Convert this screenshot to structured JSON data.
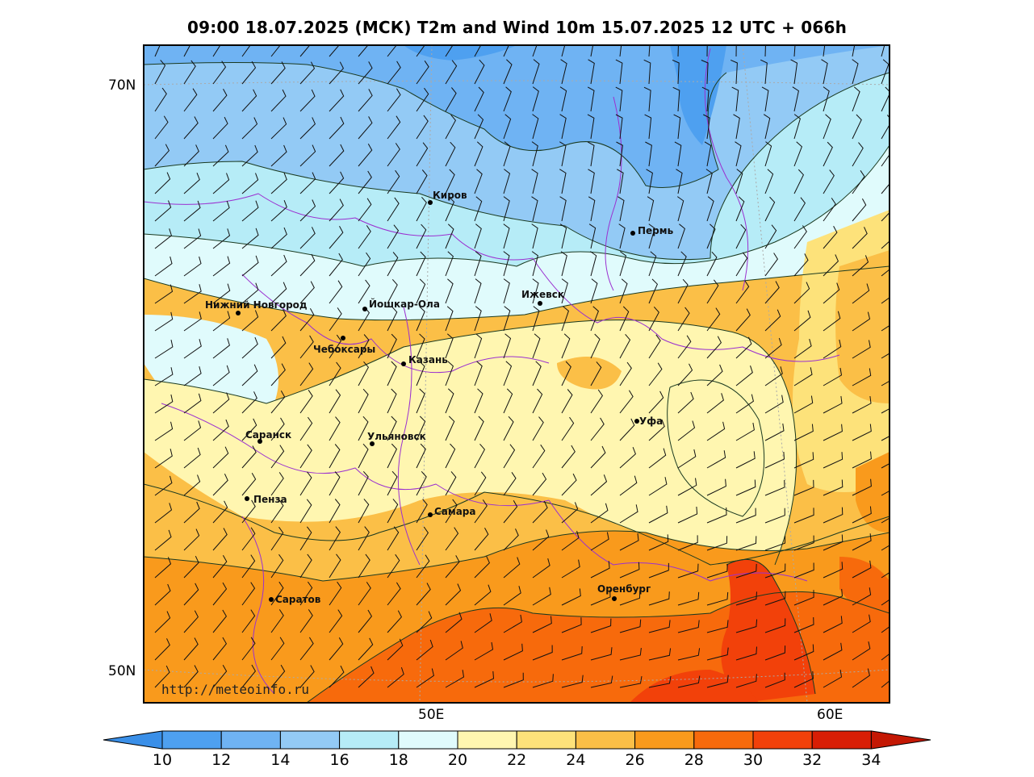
{
  "title": "09:00 18.07.2025 (МСК) T2m and Wind 10m 15.07.2025 12 UTC + 066h",
  "axes": {
    "lat_labels": [
      "70N",
      "50N"
    ],
    "lon_labels": [
      "50E",
      "60E"
    ]
  },
  "credit": "http://meteoinfo.ru",
  "cities": [
    {
      "name": "Киров"
    },
    {
      "name": "Пермь"
    },
    {
      "name": "Нижний Новгород"
    },
    {
      "name": "Йошкар-Ола"
    },
    {
      "name": "Ижевск"
    },
    {
      "name": "Чебоксары"
    },
    {
      "name": "Казань"
    },
    {
      "name": "Уфа"
    },
    {
      "name": "Саранск"
    },
    {
      "name": "Ульяновск"
    },
    {
      "name": "Пенза"
    },
    {
      "name": "Самара"
    },
    {
      "name": "Оренбург"
    },
    {
      "name": "Саратов"
    }
  ],
  "colorbar": {
    "labels": [
      "10",
      "12",
      "14",
      "16",
      "18",
      "20",
      "22",
      "24",
      "26",
      "28",
      "30",
      "32",
      "34"
    ],
    "colors": [
      "#3a8fe8",
      "#4ea0f0",
      "#6fb3f3",
      "#93caf5",
      "#b6ecf7",
      "#e0fbfc",
      "#fff6b0",
      "#fde27a",
      "#fbbf47",
      "#f99a1c",
      "#f76a0c",
      "#f2410a",
      "#d81e05",
      "#c41804"
    ]
  }
}
